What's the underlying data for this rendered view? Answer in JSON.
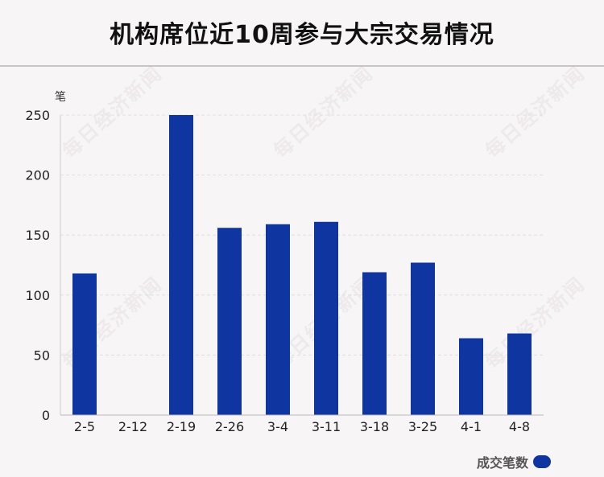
{
  "title": "机构席位近10周参与大宗交易情况",
  "watermark": "每日经济新闻",
  "colors": {
    "bar": "#0f35a0",
    "background": "#f8f5f6"
  },
  "chart_data": {
    "type": "bar",
    "title": "机构席位近10周参与大宗交易情况",
    "ylabel": "笔",
    "xlabel": "",
    "categories": [
      "2-5",
      "2-12",
      "2-19",
      "2-26",
      "3-4",
      "3-11",
      "3-18",
      "3-25",
      "4-1",
      "4-8"
    ],
    "series": [
      {
        "name": "成交笔数",
        "values": [
          118,
          0,
          250,
          156,
          159,
          161,
          119,
          127,
          64,
          68
        ]
      }
    ],
    "ylim": [
      0,
      250
    ],
    "yticks": [
      "0",
      "50",
      "100",
      "150",
      "200",
      "250"
    ],
    "grid": true,
    "legend_position": "bottom-right"
  }
}
